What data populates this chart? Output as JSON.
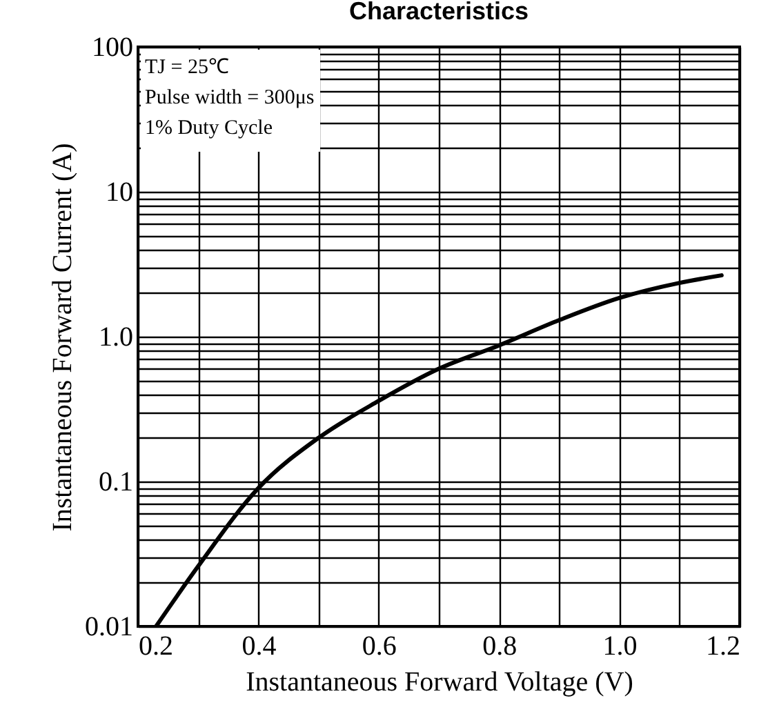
{
  "chart_data": {
    "type": "line",
    "title": "Characteristics",
    "xlabel": "Instantaneous Forward Voltage (V)",
    "ylabel": "Instantaneous Forward Current (A)",
    "annotations": [
      "TJ = 25℃",
      "Pulse width = 300μs",
      "1% Duty Cycle"
    ],
    "x": [
      0.23,
      0.3,
      0.4,
      0.5,
      0.6,
      0.7,
      0.8,
      0.9,
      1.0,
      1.1,
      1.17
    ],
    "series": [
      {
        "color": "#000000",
        "values": [
          0.01,
          0.026,
          0.09,
          0.2,
          0.36,
          0.6,
          0.87,
          1.3,
          1.85,
          2.35,
          2.65
        ]
      }
    ],
    "log": "y",
    "grid": true,
    "marker": "none",
    "line_style": "solid",
    "xlim": [
      0.2,
      1.2
    ],
    "xticks": [
      0.2,
      {
        "value": 0.3,
        "label": null
      },
      0.4,
      {
        "value": 0.5,
        "label": null
      },
      0.6,
      {
        "value": 0.7,
        "label": null
      },
      0.8,
      {
        "value": 0.9,
        "label": null
      },
      {
        "value": 1,
        "label": "1.0"
      },
      {
        "value": 1.1,
        "label": null
      },
      1.2
    ],
    "ylim": [
      0.01,
      100
    ],
    "yticks": [
      0.01,
      {
        "value": 0.02,
        "label": null
      },
      {
        "value": 0.03,
        "label": null
      },
      {
        "value": 0.04,
        "label": null
      },
      {
        "value": 0.05,
        "label": null
      },
      {
        "value": 0.06,
        "label": null
      },
      {
        "value": 0.07,
        "label": null
      },
      {
        "value": 0.08,
        "label": null
      },
      {
        "value": 0.09,
        "label": null
      },
      0.1,
      {
        "value": 0.2,
        "label": null
      },
      {
        "value": 0.3,
        "label": null
      },
      {
        "value": 0.4,
        "label": null
      },
      {
        "value": 0.5,
        "label": null
      },
      {
        "value": 0.6,
        "label": null
      },
      {
        "value": 0.7,
        "label": null
      },
      {
        "value": 0.8,
        "label": null
      },
      {
        "value": 0.9,
        "label": null
      },
      {
        "value": 1,
        "label": "1.0"
      },
      {
        "value": 2,
        "label": null
      },
      {
        "value": 3,
        "label": null
      },
      {
        "value": 4,
        "label": null
      },
      {
        "value": 5,
        "label": null
      },
      {
        "value": 6,
        "label": null
      },
      {
        "value": 7,
        "label": null
      },
      {
        "value": 8,
        "label": null
      },
      {
        "value": 9,
        "label": null
      },
      10,
      {
        "value": 20,
        "label": null
      },
      {
        "value": 30,
        "label": null
      },
      {
        "value": 40,
        "label": null
      },
      {
        "value": 50,
        "label": null
      },
      {
        "value": 60,
        "label": null
      },
      {
        "value": 70,
        "label": null
      },
      {
        "value": 80,
        "label": null
      },
      {
        "value": 90,
        "label": null
      },
      100
    ]
  }
}
